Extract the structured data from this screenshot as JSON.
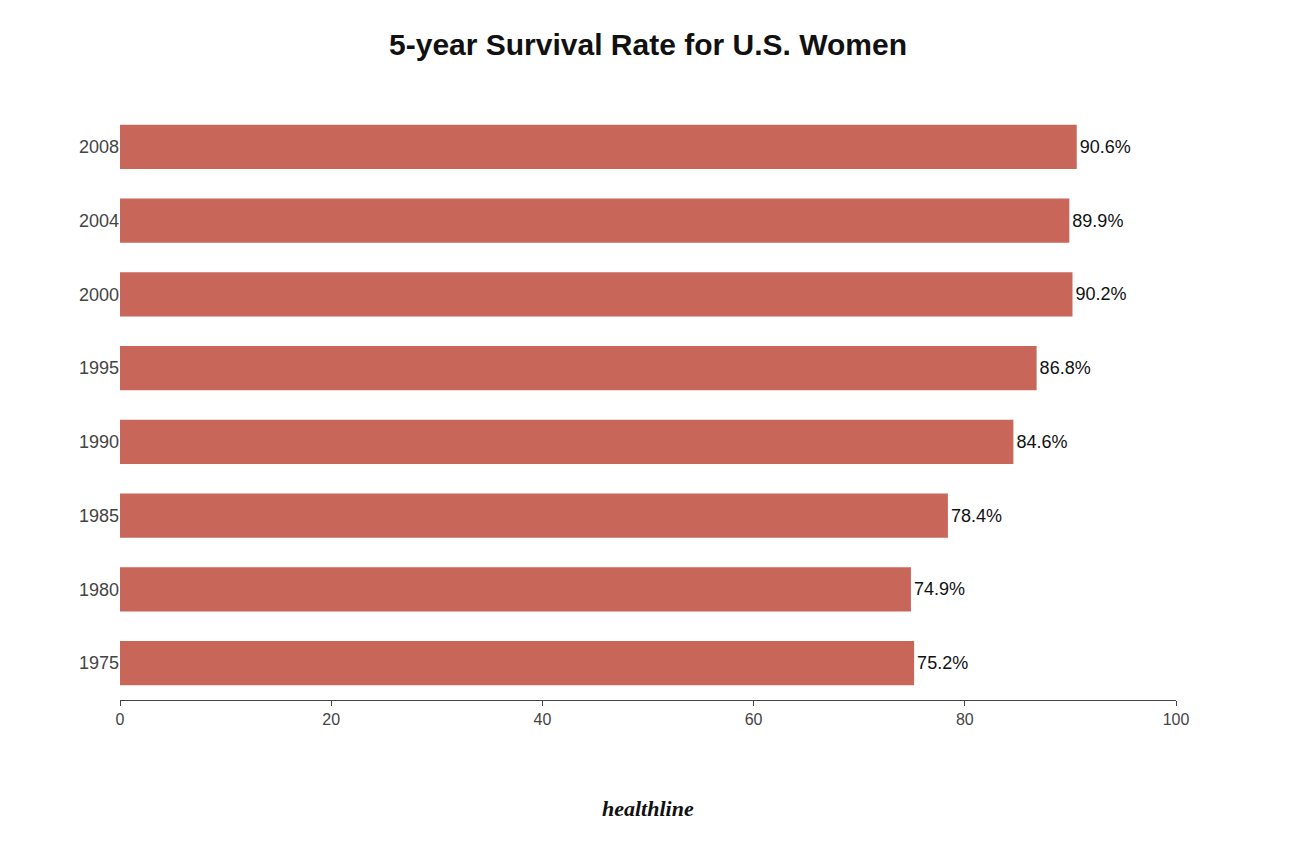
{
  "chart_data": {
    "type": "bar",
    "orientation": "horizontal",
    "title": "5-year Survival Rate for U.S. Women",
    "categories": [
      "2008",
      "2004",
      "2000",
      "1995",
      "1990",
      "1985",
      "1980",
      "1975"
    ],
    "values": [
      90.6,
      89.9,
      90.2,
      86.8,
      84.6,
      78.4,
      74.9,
      75.2
    ],
    "value_labels": [
      "90.6%",
      "89.9%",
      "90.2%",
      "86.8%",
      "84.6%",
      "78.4%",
      "74.9%",
      "75.2%"
    ],
    "data_labels": true,
    "color": "#c9665a",
    "xlim": [
      0,
      100
    ],
    "xticks": [
      0,
      20,
      40,
      60,
      80,
      100
    ],
    "grid": false,
    "annotations": [
      "healthline"
    ]
  }
}
